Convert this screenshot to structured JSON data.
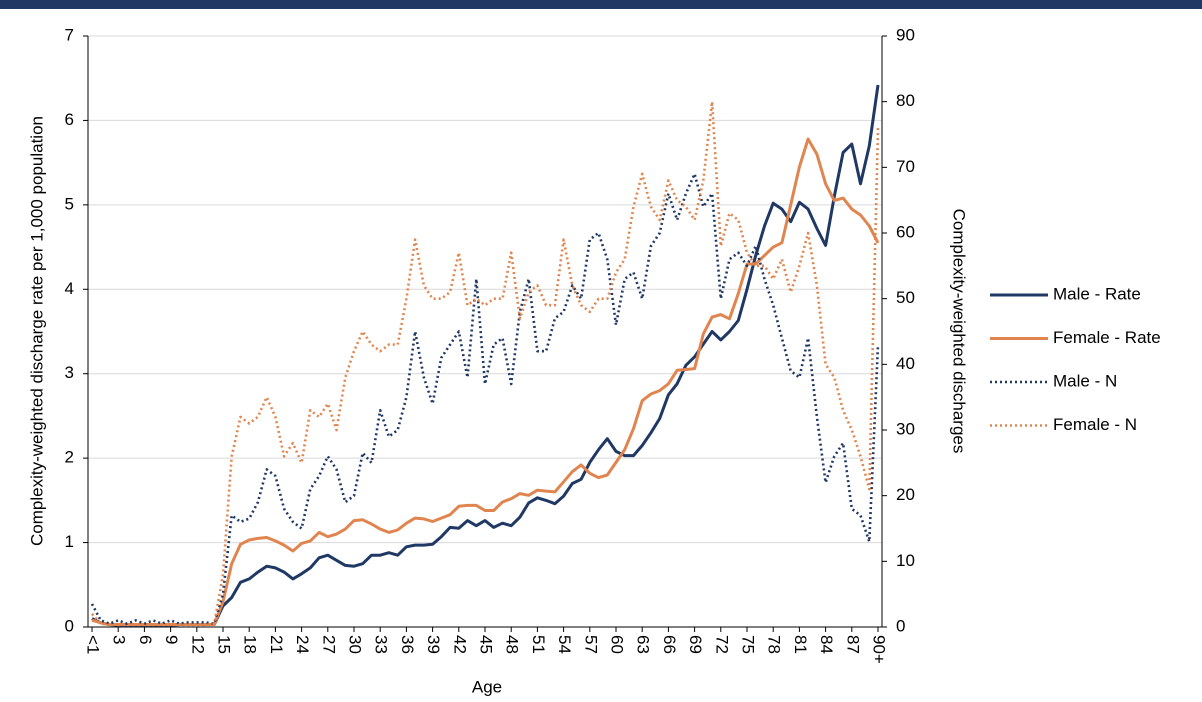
{
  "chart_data": {
    "type": "line",
    "x_label": "Age",
    "y_label": "Complexity-weighted discharge rate per 1,000 population",
    "y2_label": "Complexity-weighted discharges",
    "categories": [
      "<1",
      null,
      null,
      "3",
      null,
      null,
      "6",
      null,
      null,
      "9",
      null,
      null,
      "12",
      null,
      null,
      "15",
      null,
      null,
      "18",
      null,
      null,
      "21",
      null,
      null,
      "24",
      null,
      null,
      "27",
      null,
      null,
      "30",
      null,
      null,
      "33",
      null,
      null,
      "36",
      null,
      null,
      "39",
      null,
      null,
      "42",
      null,
      null,
      "45",
      null,
      null,
      "48",
      null,
      null,
      "51",
      null,
      null,
      "54",
      null,
      null,
      "57",
      null,
      null,
      "60",
      null,
      null,
      "63",
      null,
      null,
      "66",
      null,
      null,
      "69",
      null,
      null,
      "72",
      null,
      null,
      "75",
      null,
      null,
      "78",
      null,
      null,
      "81",
      null,
      null,
      "84",
      null,
      null,
      "87",
      null,
      null,
      "90+"
    ],
    "series": [
      {
        "name": "Male - Rate",
        "color": "#1f3864",
        "line_style": "solid",
        "axis": "y",
        "values": [
          0.1,
          0.05,
          0.03,
          0.02,
          0.02,
          0.02,
          0.02,
          0.02,
          0.02,
          0.02,
          0.03,
          0.03,
          0.03,
          0.03,
          0.03,
          0.25,
          0.35,
          0.53,
          0.57,
          0.65,
          0.72,
          0.7,
          0.65,
          0.57,
          0.63,
          0.7,
          0.82,
          0.85,
          0.79,
          0.73,
          0.72,
          0.75,
          0.85,
          0.85,
          0.88,
          0.85,
          0.95,
          0.97,
          0.97,
          0.98,
          1.07,
          1.18,
          1.17,
          1.26,
          1.2,
          1.26,
          1.18,
          1.23,
          1.2,
          1.3,
          1.47,
          1.53,
          1.5,
          1.46,
          1.55,
          1.7,
          1.75,
          1.95,
          2.1,
          2.23,
          2.08,
          2.03,
          2.03,
          2.15,
          2.3,
          2.47,
          2.75,
          2.88,
          3.1,
          3.2,
          3.35,
          3.5,
          3.4,
          3.5,
          3.63,
          4.0,
          4.4,
          4.75,
          5.02,
          4.95,
          4.8,
          5.03,
          4.95,
          4.72,
          4.52,
          5.1,
          5.62,
          5.72,
          5.25,
          5.7,
          6.42
        ]
      },
      {
        "name": "Female - Rate",
        "color": "#e0854f",
        "line_style": "solid",
        "axis": "y",
        "values": [
          0.08,
          0.05,
          0.03,
          0.03,
          0.03,
          0.03,
          0.03,
          0.03,
          0.03,
          0.03,
          0.03,
          0.03,
          0.03,
          0.03,
          0.03,
          0.3,
          0.75,
          0.98,
          1.03,
          1.05,
          1.06,
          1.02,
          0.97,
          0.9,
          0.99,
          1.02,
          1.12,
          1.07,
          1.1,
          1.16,
          1.26,
          1.27,
          1.22,
          1.16,
          1.12,
          1.15,
          1.23,
          1.29,
          1.28,
          1.25,
          1.29,
          1.33,
          1.43,
          1.44,
          1.44,
          1.38,
          1.38,
          1.48,
          1.52,
          1.58,
          1.56,
          1.62,
          1.61,
          1.6,
          1.72,
          1.84,
          1.92,
          1.82,
          1.77,
          1.8,
          1.95,
          2.1,
          2.35,
          2.68,
          2.76,
          2.8,
          2.88,
          3.04,
          3.05,
          3.06,
          3.47,
          3.67,
          3.7,
          3.65,
          3.95,
          4.3,
          4.3,
          4.4,
          4.5,
          4.55,
          5.0,
          5.45,
          5.78,
          5.6,
          5.25,
          5.05,
          5.08,
          4.95,
          4.88,
          4.75,
          4.55
        ]
      },
      {
        "name": "Male - N",
        "color": "#1f3864",
        "line_style": "dotted",
        "axis": "y2",
        "values": [
          3.5,
          1,
          0.5,
          1,
          0.5,
          1,
          0.5,
          1,
          0.5,
          1,
          0.5,
          0.7,
          0.7,
          0.7,
          0.5,
          5,
          17,
          16,
          16.5,
          19,
          24,
          23,
          18,
          16,
          15,
          21,
          23,
          26,
          24,
          19,
          20,
          26.5,
          25,
          33,
          29,
          30,
          35,
          45,
          38,
          34,
          41,
          43,
          45,
          38,
          53,
          37,
          43,
          44,
          37,
          48,
          53,
          42,
          42,
          47,
          48,
          52,
          50,
          59,
          60,
          56,
          46,
          53,
          54,
          50,
          58,
          60,
          66,
          62,
          66,
          69,
          64,
          66,
          50,
          56,
          57,
          55,
          58,
          53,
          49,
          44,
          39,
          38,
          44,
          32,
          22,
          26,
          28,
          18,
          17,
          13,
          43
        ]
      },
      {
        "name": "Female - N",
        "color": "#e0854f",
        "line_style": "dotted",
        "axis": "y2",
        "values": [
          2,
          0.5,
          0.3,
          0.3,
          0.3,
          0.3,
          0.3,
          0.3,
          0.3,
          0.3,
          0.3,
          0.3,
          0.3,
          0.3,
          0.5,
          8,
          26,
          32,
          31,
          32,
          35,
          32,
          26,
          28,
          25,
          33,
          32,
          34,
          30,
          38,
          42,
          45,
          43,
          42,
          43,
          43,
          50,
          59,
          52,
          50,
          50,
          51,
          57,
          49,
          50,
          49,
          50,
          50,
          57,
          47,
          51,
          52,
          49,
          49,
          59,
          52,
          49,
          48,
          50,
          50,
          54,
          56,
          64,
          69,
          64,
          62,
          68,
          65,
          64,
          62,
          68,
          80,
          58,
          63,
          62,
          57,
          55,
          55,
          53,
          56,
          51,
          55,
          60,
          52,
          40,
          38,
          33,
          30,
          26,
          21,
          76
        ]
      }
    ],
    "ylim": [
      0,
      7
    ],
    "yticks": [
      0,
      1,
      2,
      3,
      4,
      5,
      6,
      7
    ],
    "y2lim": [
      0,
      90
    ],
    "y2ticks": [
      0,
      10,
      20,
      30,
      40,
      50,
      60,
      70,
      80,
      90
    ],
    "grid": true,
    "legend": "right"
  }
}
